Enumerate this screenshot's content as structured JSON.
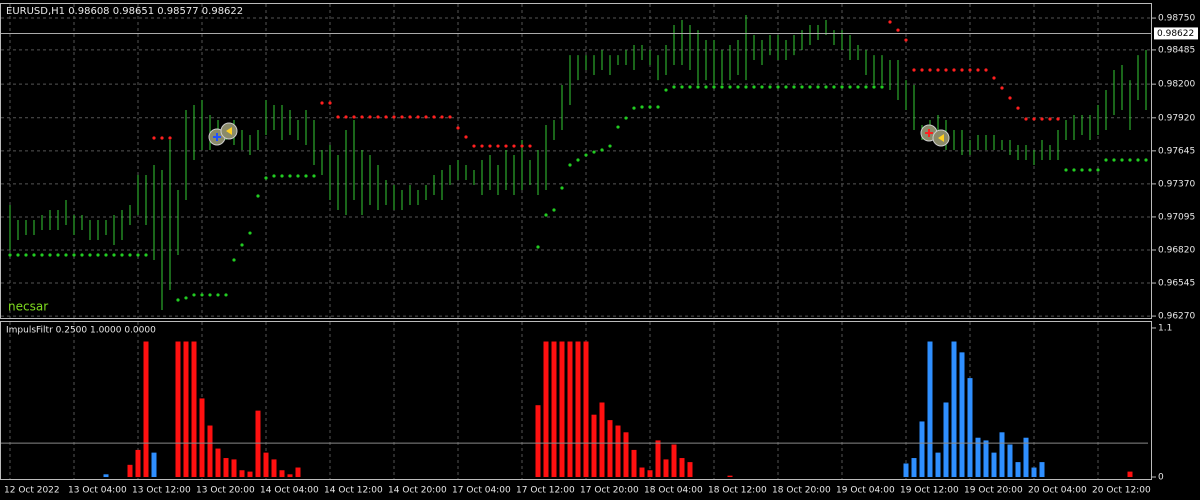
{
  "chart_data": [
    {
      "type": "ohlc",
      "title": "EURUSD,H1  0.98608 0.98651 0.98577 0.98622",
      "annotation": "necsar",
      "color": "#33cc33",
      "current_price": 0.98622,
      "high": [
        0.97194,
        0.9707,
        0.9707,
        0.9707,
        0.97111,
        0.97153,
        0.97153,
        0.97236,
        0.97111,
        0.97111,
        0.9707,
        0.9707,
        0.9707,
        0.97111,
        0.97153,
        0.97194,
        0.97444,
        0.97444,
        0.97527,
        0.97486,
        0.97735,
        0.97319,
        0.97985,
        0.98026,
        0.98068,
        0.97943,
        0.97902,
        0.9786,
        0.97902,
        0.97818,
        0.97777,
        0.97818,
        0.98068,
        0.98026,
        0.98026,
        0.97985,
        0.97902,
        0.97985,
        0.97902,
        0.97652,
        0.97694,
        0.9761,
        0.97818,
        0.97902,
        0.97652,
        0.9761,
        0.97527,
        0.97402,
        0.97361,
        0.97319,
        0.97361,
        0.97319,
        0.97361,
        0.97444,
        0.97486,
        0.97527,
        0.97569,
        0.97527,
        0.97486,
        0.97569,
        0.9761,
        0.97527,
        0.97652,
        0.9761,
        0.97735,
        0.97569,
        0.97652,
        0.9786,
        0.97902,
        0.98193,
        0.98442,
        0.98442,
        0.98442,
        0.98442,
        0.98484,
        0.98442,
        0.98442,
        0.98484,
        0.98526,
        0.98526,
        0.98484,
        0.98442,
        0.98526,
        0.98692,
        0.98734,
        0.98692,
        0.9865,
        0.98567,
        0.98567,
        0.98484,
        0.98526,
        0.98567,
        0.98775,
        0.98609,
        0.98567,
        0.98609,
        0.98609,
        0.98567,
        0.98609,
        0.9865,
        0.98692,
        0.98692,
        0.98734,
        0.9865,
        0.9865,
        0.98609,
        0.98526,
        0.98484,
        0.98442,
        0.98442,
        0.98401,
        0.98401,
        0.98234,
        0.98193,
        0.9786,
        0.97902,
        0.97943,
        0.97902,
        0.97818,
        0.97818,
        0.97735,
        0.97777,
        0.97777,
        0.97777,
        0.97735,
        0.97735,
        0.97694,
        0.97694,
        0.97652,
        0.97735,
        0.97694,
        0.97818,
        0.97902,
        0.97943,
        0.97943,
        0.97943,
        0.98026,
        0.98151,
        0.98318,
        0.98359,
        0.98234,
        0.98442,
        0.98484
      ],
      "low": [
        0.9682,
        0.96903,
        0.96945,
        0.96945,
        0.96986,
        0.96986,
        0.96986,
        0.97028,
        0.96945,
        0.96986,
        0.96903,
        0.96903,
        0.96945,
        0.96862,
        0.96903,
        0.97028,
        0.97111,
        0.97028,
        0.96737,
        0.96321,
        0.96487,
        0.96778,
        0.97236,
        0.97569,
        0.97652,
        0.97652,
        0.97735,
        0.97735,
        0.97694,
        0.97652,
        0.9761,
        0.97652,
        0.97777,
        0.97818,
        0.97735,
        0.97777,
        0.97735,
        0.97694,
        0.97527,
        0.97444,
        0.97236,
        0.97153,
        0.97111,
        0.97236,
        0.97111,
        0.97194,
        0.97153,
        0.97194,
        0.97153,
        0.97153,
        0.97194,
        0.97194,
        0.97236,
        0.97278,
        0.97236,
        0.97361,
        0.97402,
        0.97402,
        0.97361,
        0.97278,
        0.97319,
        0.97278,
        0.97319,
        0.97278,
        0.97319,
        0.97361,
        0.97278,
        0.97319,
        0.97735,
        0.97818,
        0.98026,
        0.98234,
        0.98318,
        0.98276,
        0.98318,
        0.98276,
        0.98359,
        0.98359,
        0.98318,
        0.98401,
        0.98359,
        0.98234,
        0.98276,
        0.98359,
        0.98359,
        0.98318,
        0.98193,
        0.98234,
        0.98193,
        0.98193,
        0.98234,
        0.98276,
        0.98234,
        0.98401,
        0.98359,
        0.98442,
        0.98401,
        0.98401,
        0.98442,
        0.98484,
        0.98526,
        0.98567,
        0.98609,
        0.98526,
        0.98484,
        0.98401,
        0.98401,
        0.98276,
        0.98193,
        0.98193,
        0.98151,
        0.98068,
        0.97985,
        0.97818,
        0.97735,
        0.97735,
        0.97735,
        0.97652,
        0.97652,
        0.9761,
        0.9761,
        0.97652,
        0.97652,
        0.97652,
        0.97652,
        0.9761,
        0.97569,
        0.97569,
        0.97527,
        0.97569,
        0.97569,
        0.97569,
        0.97735,
        0.97735,
        0.97777,
        0.97735,
        0.97777,
        0.97818,
        0.97943,
        0.97985,
        0.97818,
        0.98068,
        0.97985
      ],
      "series": [
        {
          "color": "#ff2020",
          "values": [
            null,
            null,
            null,
            null,
            null,
            null,
            null,
            null,
            null,
            null,
            null,
            null,
            null,
            null,
            null,
            null,
            null,
            null,
            0.97752,
            0.97752,
            0.97752,
            null,
            null,
            null,
            null,
            null,
            null,
            null,
            null,
            null,
            null,
            null,
            null,
            null,
            null,
            null,
            null,
            null,
            null,
            0.98043,
            0.98043,
            0.97927,
            0.97927,
            0.97927,
            0.97927,
            0.97927,
            0.97927,
            0.97927,
            0.97927,
            0.97927,
            0.97927,
            0.97927,
            0.97927,
            0.97927,
            0.97927,
            0.97927,
            0.97835,
            0.9776,
            0.97685,
            0.97685,
            0.97685,
            0.97685,
            0.97685,
            0.97685,
            0.97685,
            0.97685,
            null,
            null,
            null,
            null,
            null,
            null,
            null,
            null,
            null,
            null,
            null,
            null,
            null,
            null,
            null,
            null,
            null,
            null,
            null,
            null,
            null,
            null,
            null,
            null,
            null,
            null,
            null,
            null,
            null,
            null,
            null,
            null,
            null,
            null,
            null,
            null,
            null,
            null,
            null,
            null,
            null,
            null,
            null,
            null,
            0.98717,
            0.9865,
            0.98567,
            0.98318,
            0.98318,
            0.98318,
            0.98318,
            0.98318,
            0.98318,
            0.98318,
            0.98318,
            0.98318,
            0.98318,
            0.98251,
            0.98168,
            0.98085,
            0.98001,
            0.9791,
            0.9791,
            0.9791,
            0.9791,
            0.9791,
            null,
            null,
            null,
            null,
            null,
            null,
            null,
            null,
            null,
            null,
            null
          ]
        },
        {
          "color": "#22cc22",
          "values": [
            0.96778,
            0.96778,
            0.96778,
            0.96778,
            0.96778,
            0.96778,
            0.96778,
            0.96778,
            0.96778,
            0.96778,
            0.96778,
            0.96778,
            0.96778,
            0.96778,
            0.96778,
            0.96778,
            0.96778,
            0.96778,
            null,
            null,
            null,
            0.96404,
            0.96421,
            0.96446,
            0.96446,
            0.96446,
            0.96446,
            0.96446,
            0.96737,
            0.96862,
            0.96961,
            0.97269,
            0.97419,
            0.97436,
            0.97436,
            0.97436,
            0.97436,
            0.97436,
            0.97436,
            null,
            null,
            null,
            null,
            null,
            null,
            null,
            null,
            null,
            null,
            null,
            null,
            null,
            null,
            null,
            null,
            null,
            null,
            null,
            null,
            null,
            null,
            null,
            null,
            null,
            null,
            null,
            0.96845,
            0.97111,
            0.97153,
            0.97336,
            0.97527,
            0.97569,
            0.9761,
            0.97635,
            0.97652,
            0.97685,
            0.97843,
            0.97918,
            0.98001,
            0.9801,
            0.9801,
            0.9801,
            0.98151,
            0.98176,
            0.98176,
            0.98176,
            0.98176,
            0.98176,
            0.98176,
            0.98176,
            0.98176,
            0.98176,
            0.98176,
            0.98176,
            0.98176,
            0.98176,
            0.98176,
            0.98176,
            0.98176,
            0.98176,
            0.98176,
            0.98176,
            0.98176,
            0.98176,
            0.98176,
            0.98176,
            0.98176,
            0.98176,
            0.98176,
            0.98176,
            null,
            null,
            null,
            null,
            null,
            null,
            null,
            null,
            null,
            null,
            null,
            null,
            null,
            null,
            null,
            null,
            null,
            null,
            null,
            null,
            null,
            null,
            0.97486,
            0.97486,
            0.97486,
            0.97486,
            0.97486,
            0.97569,
            0.97569,
            0.97569,
            0.97569,
            0.97569,
            0.97569
          ]
        }
      ],
      "ylim": [
        0.96254,
        0.98867
      ],
      "yticks": [
        {
          "value": 0.9875,
          "label": "0.98750"
        },
        0.98485,
        {
          "value": 0.982,
          "label": "0.98200"
        },
        {
          "value": 0.9792,
          "label": "0.97920"
        },
        0.97645,
        {
          "value": 0.9737,
          "label": "0.97370"
        },
        0.97095,
        {
          "value": 0.9682,
          "label": "0.96820"
        },
        0.96545,
        {
          "value": 0.9627,
          "label": "0.96270"
        }
      ],
      "grid": true
    },
    {
      "type": "bar",
      "title": "ImpulsFiltr 0.2500 1.0000 0.0000",
      "categories": [
        "12 Oct 2022",
        null,
        null,
        null,
        null,
        null,
        null,
        null,
        "13 Oct 04:00",
        null,
        null,
        null,
        null,
        null,
        null,
        null,
        "13 Oct 12:00",
        null,
        null,
        null,
        null,
        null,
        null,
        null,
        "13 Oct 20:00",
        null,
        null,
        null,
        null,
        null,
        null,
        null,
        "14 Oct 04:00",
        null,
        null,
        null,
        null,
        null,
        null,
        null,
        "14 Oct 12:00",
        null,
        null,
        null,
        null,
        null,
        null,
        null,
        "14 Oct 20:00",
        null,
        null,
        null,
        null,
        null,
        null,
        null,
        "17 Oct 04:00",
        null,
        null,
        null,
        null,
        null,
        null,
        null,
        "17 Oct 12:00",
        null,
        null,
        null,
        null,
        null,
        null,
        null,
        "17 Oct 20:00",
        null,
        null,
        null,
        null,
        null,
        null,
        null,
        "18 Oct 04:00",
        null,
        null,
        null,
        null,
        null,
        null,
        null,
        "18 Oct 12:00",
        null,
        null,
        null,
        null,
        null,
        null,
        null,
        "18 Oct 20:00",
        null,
        null,
        null,
        null,
        null,
        null,
        null,
        "19 Oct 04:00",
        null,
        null,
        null,
        null,
        null,
        null,
        null,
        "19 Oct 12:00",
        null,
        null,
        null,
        null,
        null,
        null,
        null,
        "19 Oct 20:00",
        null,
        null,
        null,
        null,
        null,
        null,
        null,
        "20 Oct 04:00",
        null,
        null,
        null,
        null,
        null,
        null,
        null,
        "20 Oct 12:00",
        null,
        null,
        null,
        null,
        null,
        null
      ],
      "series": [
        {
          "color": "#ff1010",
          "values": [
            0,
            0,
            0,
            0,
            0,
            0,
            0,
            0,
            0,
            0,
            0,
            0,
            0,
            0,
            0,
            0.09,
            0.2,
            1.0,
            0,
            0,
            0,
            1.0,
            1.0,
            1.0,
            0.58,
            0.38,
            0.21,
            0.14,
            0.13,
            0.05,
            0.04,
            0.49,
            0.18,
            0.13,
            0.05,
            0.02,
            0.07,
            0,
            0,
            0,
            0,
            0,
            0,
            0,
            0,
            0,
            0,
            0,
            0,
            0,
            0,
            0,
            0,
            0,
            0,
            0,
            0,
            0,
            0,
            0,
            0,
            0,
            0,
            0,
            0,
            0,
            0.53,
            1.0,
            1.0,
            1.0,
            1.0,
            1.0,
            1.0,
            0.46,
            0.55,
            0.42,
            0.38,
            0.33,
            0.2,
            0.07,
            0.05,
            0.27,
            0.13,
            0.24,
            0.14,
            0.11,
            0,
            0,
            0,
            0,
            0.01,
            0,
            0,
            0,
            0,
            0,
            0,
            0,
            0,
            0,
            0,
            0,
            0,
            0,
            0,
            0,
            0,
            0,
            0,
            0,
            0,
            0,
            0,
            0,
            0,
            0,
            0,
            0,
            0,
            0,
            0,
            0,
            0,
            0,
            0,
            0,
            0,
            0,
            0,
            0,
            0,
            0,
            0,
            0,
            0,
            0,
            0,
            0,
            0,
            0,
            0.04,
            0,
            0
          ]
        },
        {
          "color": "#2f8fff",
          "values": [
            0,
            0,
            0,
            0,
            0,
            0,
            0,
            0,
            0,
            0,
            0,
            0,
            0.02,
            0,
            0,
            0,
            0,
            0,
            0.18,
            0,
            0,
            0,
            0,
            0,
            0,
            0,
            0,
            0,
            0,
            0,
            0,
            0,
            0,
            0,
            0,
            0,
            0,
            0,
            0,
            0,
            0,
            0,
            0,
            0,
            0,
            0,
            0,
            0,
            0,
            0,
            0,
            0,
            0,
            0,
            0,
            0,
            0,
            0,
            0,
            0,
            0,
            0,
            0,
            0,
            0,
            0,
            0,
            0,
            0,
            0,
            0,
            0,
            0,
            0,
            0,
            0,
            0,
            0,
            0,
            0,
            0,
            0,
            0,
            0,
            0,
            0,
            0,
            0,
            0,
            0,
            0,
            0,
            0,
            0,
            0,
            0,
            0,
            0,
            0,
            0,
            0,
            0,
            0,
            0,
            0,
            0,
            0,
            0,
            0,
            0,
            0,
            0,
            0.1,
            0.14,
            0.41,
            1.0,
            0.18,
            0.55,
            1.0,
            0.92,
            0.73,
            0.29,
            0.27,
            0.18,
            0.33,
            0.24,
            0.11,
            0.29,
            0.07,
            0.11,
            0,
            0,
            0,
            0,
            0,
            0,
            0,
            0,
            0,
            0,
            0,
            0,
            0
          ]
        }
      ],
      "levels": [
        0.25
      ],
      "ylim": [
        -0.022,
        1.144
      ],
      "yticks": [
        1.1,
        0
      ]
    }
  ]
}
